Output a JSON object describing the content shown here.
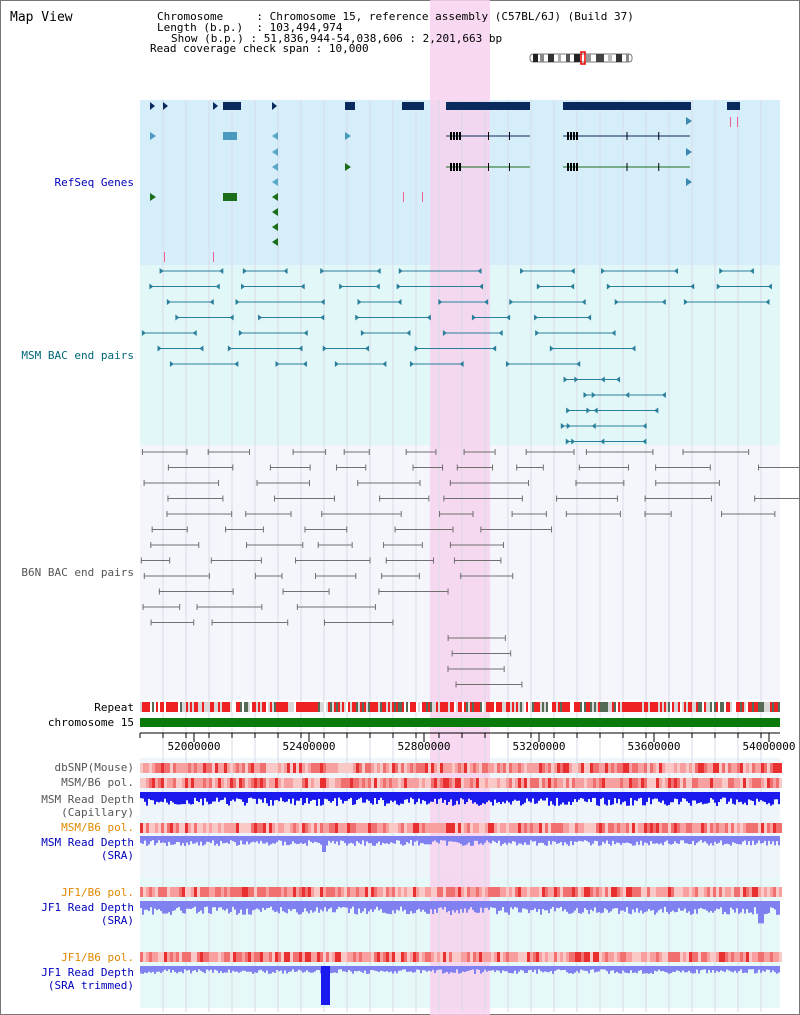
{
  "page": {
    "title": "Map View"
  },
  "info": {
    "chromosome_key": "Chromosome",
    "chromosome_val": "Chromosome 15, reference assembly (C57BL/6J) (Build 37)",
    "length_key": "Length (b.p.)",
    "length_val": "103,494,974",
    "show_key": "Show (b.p.)",
    "show_val": "51,836,944-54,038,606 : 2,201,663 bp",
    "span_key": "Read coverage check span",
    "span_val": "10,000"
  },
  "tracks": {
    "refseq": "RefSeq Genes",
    "msm_bac": "MSM BAC end pairs",
    "b6n_bac": "B6N BAC end pairs",
    "repeat": "Repeat",
    "chromosome": "chromosome 15",
    "dbsnp": "dbSNP(Mouse)",
    "msm_b6_pol_1": "MSM/B6 pol.",
    "msm_read_depth_cap": "MSM Read Depth",
    "msm_read_depth_cap_sub": "(Capillary)",
    "msm_b6_pol_2": "MSM/B6 pol.",
    "msm_read_depth_sra": "MSM Read Depth",
    "msm_read_depth_sra_sub": "(SRA)",
    "jf1_b6_pol_1": "JF1/B6 pol.",
    "jf1_read_depth_sra": "JF1 Read Depth",
    "jf1_read_depth_sra_sub": "(SRA)",
    "jf1_b6_pol_2": "JF1/B6 pol.",
    "jf1_read_depth_trim": "JF1 Read Depth",
    "jf1_read_depth_trim_sub": "(SRA trimmed)"
  },
  "axis": {
    "ticks": [
      "52000000",
      "52400000",
      "52800000",
      "53200000",
      "53600000",
      "54000000"
    ]
  },
  "colors": {
    "refseq_bg": "#d6eefa",
    "msm_bg": "#e2f7f8",
    "b6n_bg": "#f5f6fb",
    "highlight": "#f7d2ee",
    "gene_dark": "#0a2a5e",
    "gene_green": "#1a6e1a",
    "msm_line": "#2a7f9a",
    "b6n_line": "#707070",
    "chrom_bar": "#0a7a0a",
    "depth_blue": "#1a1aee",
    "depth_light": "#8080f0"
  }
}
